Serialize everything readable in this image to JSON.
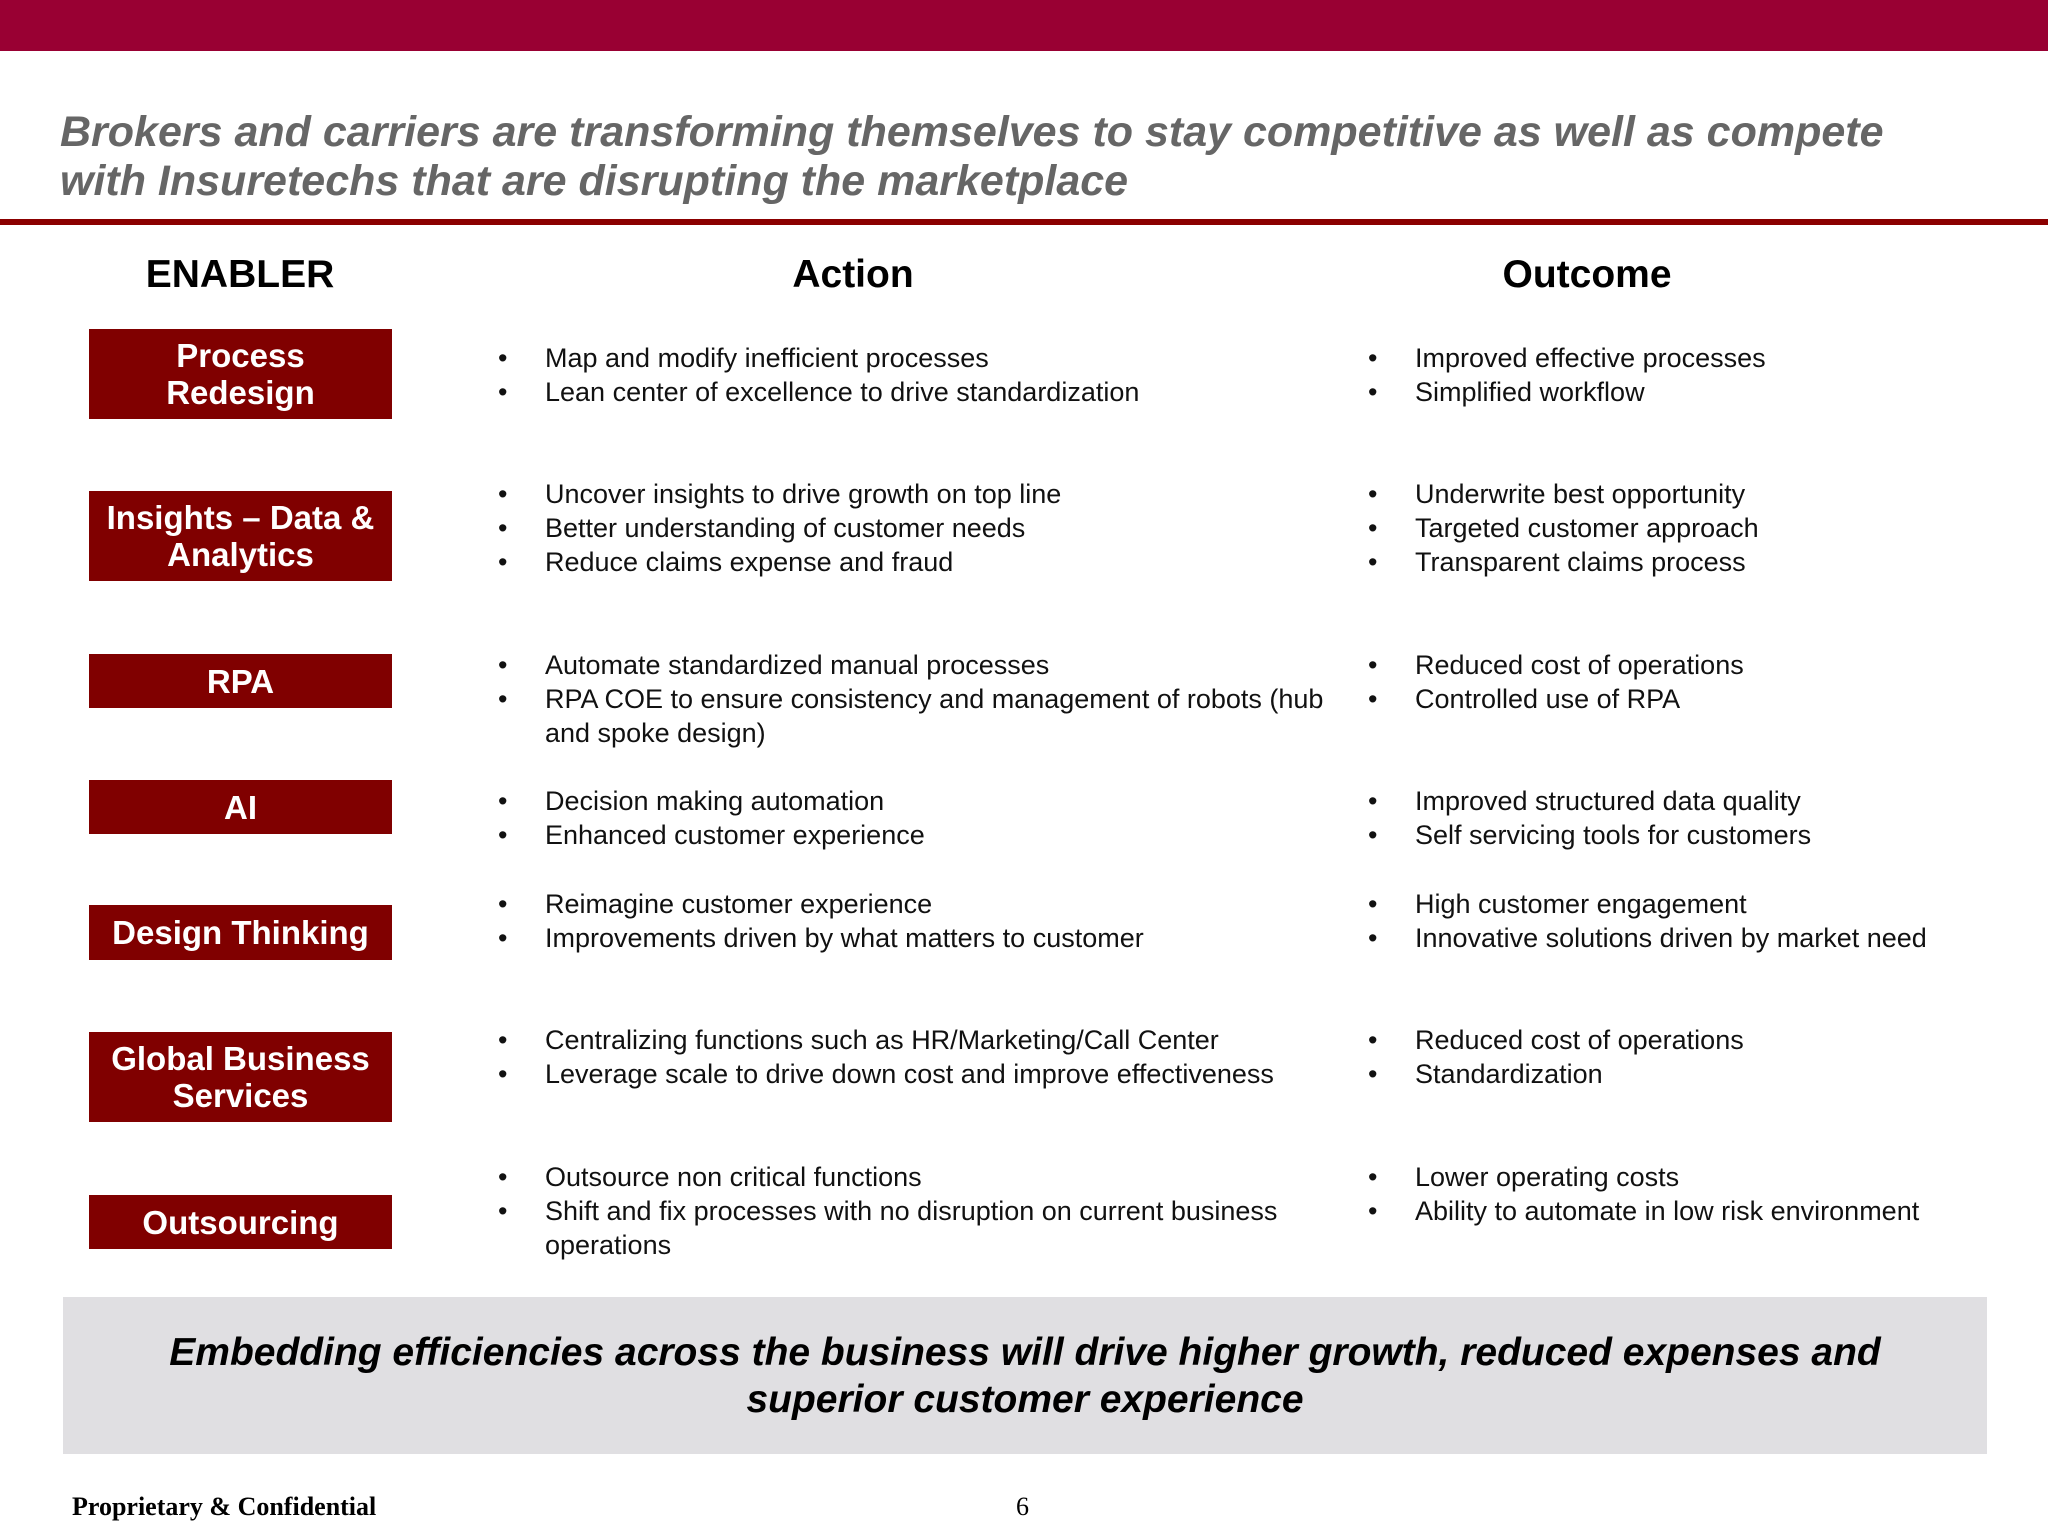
{
  "header": {
    "title": "Brokers and carriers are transforming themselves to stay competitive as well as compete with Insuretechs that are disrupting the marketplace"
  },
  "columns": [
    "ENABLER",
    "Action",
    "Outcome"
  ],
  "rows": [
    {
      "enabler": "Process Redesign",
      "actions": [
        "Map and modify inefficient processes",
        "Lean center of excellence to drive standardization"
      ],
      "outcomes": [
        "Improved effective processes",
        "Simplified workflow"
      ]
    },
    {
      "enabler": "Insights – Data & Analytics",
      "actions": [
        "Uncover insights to drive growth on top line",
        "Better understanding of customer needs",
        "Reduce claims expense and fraud"
      ],
      "outcomes": [
        "Underwrite best opportunity",
        "Targeted customer approach",
        "Transparent claims process"
      ]
    },
    {
      "enabler": "RPA",
      "actions": [
        "Automate standardized manual processes",
        "RPA COE to ensure consistency and management of robots (hub and spoke design)"
      ],
      "outcomes": [
        "Reduced cost of operations",
        "Controlled use of RPA"
      ]
    },
    {
      "enabler": "AI",
      "actions": [
        "Decision making automation",
        "Enhanced customer experience"
      ],
      "outcomes": [
        "Improved structured data quality",
        "Self servicing tools for customers"
      ]
    },
    {
      "enabler": "Design Thinking",
      "actions": [
        "Reimagine customer experience",
        "Improvements driven by what matters to customer"
      ],
      "outcomes": [
        "High customer engagement",
        "Innovative solutions driven by market need"
      ]
    },
    {
      "enabler": "Global Business Services",
      "actions": [
        "Centralizing functions such as HR/Marketing/Call Center",
        "Leverage scale to drive down cost and improve effectiveness"
      ],
      "outcomes": [
        "Reduced cost of operations",
        "Standardization"
      ]
    },
    {
      "enabler": "Outsourcing",
      "actions": [
        "Outsource non critical functions",
        "Shift and fix processes with no disruption on current business operations"
      ],
      "outcomes": [
        "Lower operating costs",
        "Ability to automate in low risk environment"
      ]
    }
  ],
  "summary": "Embedding efficiencies across the business will drive higher growth, reduced expenses and superior customer experience",
  "footer": {
    "confidentiality": "Proprietary & Confidential",
    "page_number": 6
  }
}
